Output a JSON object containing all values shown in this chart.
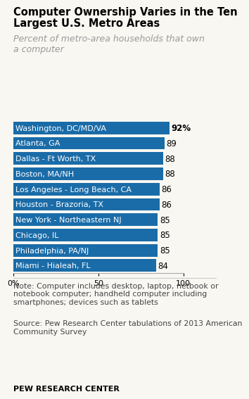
{
  "title_line1": "Computer Ownership Varies in the Ten",
  "title_line2": "Largest U.S. Metro Areas",
  "subtitle": "Percent of metro-area households that own\na computer",
  "categories": [
    "Washington, DC/MD/VA",
    "Atlanta, GA",
    "Dallas - Ft Worth, TX",
    "Boston, MA/NH",
    "Los Angeles - Long Beach, CA",
    "Houston - Brazoria, TX",
    "New York - Northeastern NJ",
    "Chicago, IL",
    "Philadelphia, PA/NJ",
    "Miami - Hialeah, FL"
  ],
  "values": [
    92,
    89,
    88,
    88,
    86,
    86,
    85,
    85,
    85,
    84
  ],
  "bar_color": "#1a6ca8",
  "value_labels": [
    "92%",
    "89",
    "88",
    "88",
    "86",
    "86",
    "85",
    "85",
    "85",
    "84"
  ],
  "value_bold": [
    true,
    false,
    false,
    false,
    false,
    false,
    false,
    false,
    false,
    false
  ],
  "xlim": [
    0,
    100
  ],
  "xticks": [
    0,
    50,
    100
  ],
  "xticklabels": [
    "0%",
    "50",
    "100"
  ],
  "note": "Note: Computer includes desktop, laptop, netbook or\nnotebook computer; handheld computer including\nsmartphones; devices such as tablets",
  "source": "Source: Pew Research Center tabulations of 2013 American\nCommunity Survey",
  "footer": "PEW RESEARCH CENTER",
  "bg_color": "#f9f7f2",
  "title_fontsize": 10.5,
  "subtitle_fontsize": 9,
  "bar_label_fontsize": 8.5,
  "cat_label_fontsize": 8,
  "axis_label_fontsize": 8,
  "note_fontsize": 7.8,
  "footer_fontsize": 8
}
